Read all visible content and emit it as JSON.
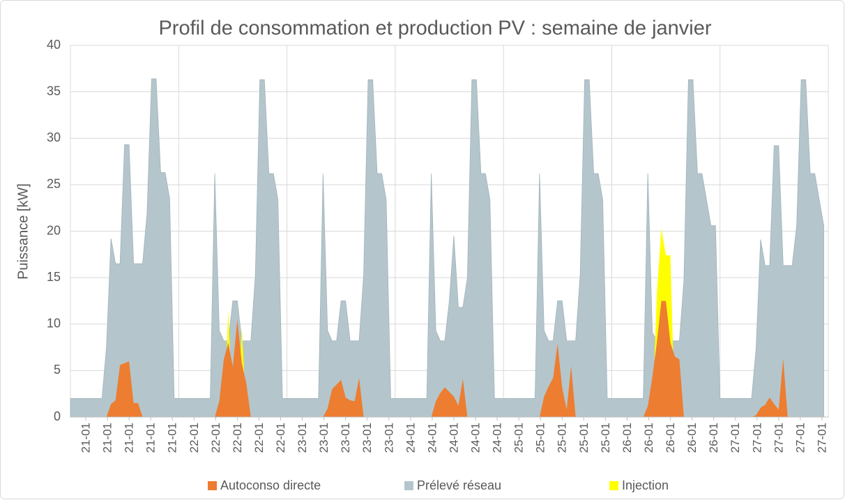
{
  "chart_data": {
    "type": "area",
    "title": "Profil de consommation et production PV : semaine de janvier",
    "y_label": "Puissance [kW]",
    "x": [
      0,
      1,
      2,
      3,
      4,
      5,
      6,
      7,
      8,
      9,
      10,
      11,
      12,
      13,
      14,
      15,
      16,
      17,
      18,
      19,
      20,
      21,
      22,
      23,
      24,
      25,
      26,
      27,
      28,
      29,
      30,
      31,
      32,
      33,
      34,
      35,
      36,
      37,
      38,
      39,
      40,
      41,
      42,
      43,
      44,
      45,
      46,
      47,
      48,
      49,
      50,
      51,
      52,
      53,
      54,
      55,
      56,
      57,
      58,
      59,
      60,
      61,
      62,
      63,
      64,
      65,
      66,
      67,
      68,
      69,
      70,
      71,
      72,
      73,
      74,
      75,
      76,
      77,
      78,
      79,
      80,
      81,
      82,
      83,
      84,
      85,
      86,
      87,
      88,
      89,
      90,
      91,
      92,
      93,
      94,
      95,
      96,
      97,
      98,
      99,
      100,
      101,
      102,
      103,
      104,
      105,
      106,
      107,
      108,
      109,
      110,
      111,
      112,
      113,
      114,
      115,
      116,
      117,
      118,
      119,
      120,
      121,
      122,
      123,
      124,
      125,
      126,
      127,
      128,
      129,
      130,
      131,
      132,
      133,
      134,
      135,
      136,
      137,
      138,
      139,
      140,
      141,
      142,
      143,
      144,
      145,
      146,
      147,
      148,
      149,
      150,
      151,
      152,
      153,
      154,
      155,
      156,
      157,
      158,
      159,
      160,
      161,
      162,
      163,
      164,
      165,
      166,
      167
    ],
    "series": [
      {
        "name": "Autoconso directe",
        "color": "#ed7d31",
        "values": [
          0,
          0,
          0,
          0,
          0,
          0,
          0,
          0,
          0,
          1.4,
          1.8,
          5.6,
          5.8,
          6,
          1.5,
          1.5,
          0,
          0,
          0,
          0,
          0,
          0,
          0,
          0,
          0,
          0,
          0,
          0,
          0,
          0,
          0,
          0,
          0,
          1.7,
          6.2,
          8,
          5.4,
          10.5,
          5.8,
          3.6,
          0,
          0,
          0,
          0,
          0,
          0,
          0,
          0,
          0,
          0,
          0,
          0,
          0,
          0,
          0,
          0,
          0,
          0.9,
          3,
          3.5,
          4,
          2.1,
          1.8,
          1.7,
          4.2,
          0,
          0,
          0,
          0,
          0,
          0,
          0,
          0,
          0,
          0,
          0,
          0,
          0,
          0,
          0,
          0,
          1.7,
          2.6,
          3.2,
          2.7,
          2.2,
          1.2,
          4.1,
          0,
          0,
          0,
          0,
          0,
          0,
          0,
          0,
          0,
          0,
          0,
          0,
          0,
          0,
          0,
          0,
          0,
          2.2,
          3.3,
          4.2,
          7.9,
          3.2,
          0.8,
          5.5,
          0,
          0,
          0,
          0,
          0,
          0,
          0,
          0,
          0,
          0,
          0,
          0,
          0,
          0,
          0,
          0,
          1.2,
          4.3,
          8,
          12.5,
          12.5,
          8,
          6.5,
          6.2,
          0,
          0,
          0,
          0,
          0,
          0,
          0,
          0,
          0,
          0,
          0,
          0,
          0,
          0,
          0,
          0,
          0.2,
          1,
          1.3,
          2.1,
          1.4,
          0.8,
          6.3,
          0,
          0,
          0,
          0,
          0,
          0,
          0,
          0,
          0
        ]
      },
      {
        "name": "Prélevé réseau",
        "color": "#b4c6cc",
        "values": [
          2,
          2,
          2,
          2,
          2,
          2,
          2,
          2,
          7.6,
          19.2,
          16.5,
          16.5,
          29.3,
          29.3,
          16.5,
          16.5,
          16.5,
          22,
          36.4,
          36.4,
          26.3,
          26.3,
          23.5,
          2,
          2,
          2,
          2,
          2,
          2,
          2,
          2,
          2,
          26.2,
          9.3,
          8.2,
          8.2,
          12.5,
          12.5,
          8.2,
          8.2,
          8.2,
          15.3,
          36.3,
          36.3,
          26.2,
          26.2,
          23.4,
          2,
          2,
          2,
          2,
          2,
          2,
          2,
          2,
          2,
          26.2,
          9.3,
          8.2,
          8.2,
          12.5,
          12.5,
          8.2,
          8.2,
          8.2,
          15.3,
          36.3,
          36.3,
          26.2,
          26.2,
          23.4,
          2,
          2,
          2,
          2,
          2,
          2,
          2,
          2,
          2,
          26.2,
          9.3,
          8.2,
          8.2,
          12.5,
          19.5,
          11.8,
          11.8,
          15,
          36.3,
          36.3,
          26.2,
          26.2,
          23.4,
          2,
          2,
          2,
          2,
          2,
          2,
          2,
          2,
          2,
          2,
          26.2,
          9.3,
          8.2,
          8.2,
          12.5,
          12.5,
          8.2,
          8.2,
          8.2,
          15.3,
          36.3,
          36.3,
          26.2,
          26.2,
          23.4,
          2,
          2,
          2,
          2,
          2,
          2,
          2,
          2,
          2,
          26.2,
          9.1,
          8.2,
          8.2,
          8.2,
          8.2,
          8.2,
          8.2,
          14.7,
          36.3,
          36.3,
          26.2,
          26.2,
          23.4,
          20.6,
          20.6,
          2,
          2,
          2,
          2,
          2,
          2,
          2,
          2,
          7.4,
          19.1,
          16.3,
          16.3,
          29.2,
          29.2,
          16.3,
          16.3,
          16.3,
          20.6,
          36.3,
          36.3,
          26.2,
          26.2,
          23.4,
          20.6
        ]
      },
      {
        "name": "Injection",
        "color": "#ffff00",
        "values": [
          0,
          0,
          0,
          0,
          0,
          0,
          0,
          0,
          0,
          0,
          0,
          0,
          0,
          0,
          0,
          0,
          0,
          0,
          0,
          0,
          0,
          0,
          0,
          0,
          0,
          0,
          0,
          0,
          0,
          0,
          0,
          0,
          0,
          0,
          0,
          11.5,
          0,
          0,
          9.6,
          0,
          0,
          0,
          0,
          0,
          0,
          0,
          0,
          0,
          0,
          0,
          0,
          0,
          0,
          0,
          0,
          0,
          0,
          0,
          0,
          0,
          0,
          0,
          0,
          0,
          0,
          0,
          0,
          0,
          0,
          0,
          0,
          0,
          0,
          0,
          0,
          0,
          0,
          0,
          0,
          0,
          0,
          0,
          0,
          0,
          0,
          0,
          0,
          0,
          0,
          0,
          0,
          0,
          0,
          0,
          0,
          0,
          0,
          0,
          0,
          0,
          0,
          0,
          0,
          0,
          0,
          0,
          0,
          0,
          0,
          0,
          0,
          0,
          0,
          0,
          0,
          0,
          0,
          0,
          0,
          0,
          0,
          0,
          0,
          0,
          0,
          0,
          0,
          0,
          0,
          0,
          13.2,
          20.3,
          17.4,
          17.4,
          0,
          0,
          0,
          0,
          0,
          0,
          0,
          0,
          0,
          0,
          0,
          0,
          0,
          0,
          0,
          0,
          0,
          0,
          0,
          0,
          0,
          0,
          0,
          0,
          0,
          0,
          0,
          0,
          0,
          0,
          0,
          0,
          0,
          0
        ]
      }
    ],
    "xlim": [
      0,
      168
    ],
    "xticks": [
      {
        "value": 3.4,
        "label": "21-01"
      },
      {
        "value": 8.2,
        "label": "21-01"
      },
      {
        "value": 13,
        "label": "21-01"
      },
      {
        "value": 17.8,
        "label": "21-01"
      },
      {
        "value": 22.6,
        "label": "21-01"
      },
      {
        "value": 27.4,
        "label": "22-01"
      },
      {
        "value": 32.2,
        "label": "22-01"
      },
      {
        "value": 37,
        "label": "22-01"
      },
      {
        "value": 41.8,
        "label": "22-01"
      },
      {
        "value": 46.6,
        "label": "22-01"
      },
      {
        "value": 51.4,
        "label": "23-01"
      },
      {
        "value": 56.2,
        "label": "23-01"
      },
      {
        "value": 61,
        "label": "23-01"
      },
      {
        "value": 65.8,
        "label": "23-01"
      },
      {
        "value": 70.6,
        "label": "23-01"
      },
      {
        "value": 75.4,
        "label": "24-01"
      },
      {
        "value": 80.2,
        "label": "24-01"
      },
      {
        "value": 85,
        "label": "24-01"
      },
      {
        "value": 89.8,
        "label": "24-01"
      },
      {
        "value": 94.6,
        "label": "24-01"
      },
      {
        "value": 99.4,
        "label": "25-01"
      },
      {
        "value": 104.2,
        "label": "25-01"
      },
      {
        "value": 109,
        "label": "25-01"
      },
      {
        "value": 113.8,
        "label": "25-01"
      },
      {
        "value": 118.6,
        "label": "25-01"
      },
      {
        "value": 123.4,
        "label": "26-01"
      },
      {
        "value": 128.2,
        "label": "26-01"
      },
      {
        "value": 133,
        "label": "26-01"
      },
      {
        "value": 137.8,
        "label": "26-01"
      },
      {
        "value": 142.6,
        "label": "26-01"
      },
      {
        "value": 147.4,
        "label": "27-01"
      },
      {
        "value": 152.2,
        "label": "27-01"
      },
      {
        "value": 157,
        "label": "27-01"
      },
      {
        "value": 161.8,
        "label": "27-01"
      },
      {
        "value": 166.6,
        "label": "27-01"
      }
    ],
    "xgrid": [
      0,
      24,
      48,
      72,
      96,
      120,
      144,
      168
    ],
    "ylim": [
      0,
      40
    ],
    "yticks": [
      0,
      5,
      10,
      15,
      20,
      25,
      30,
      35,
      40
    ],
    "grid": true,
    "legend": "bottom"
  }
}
